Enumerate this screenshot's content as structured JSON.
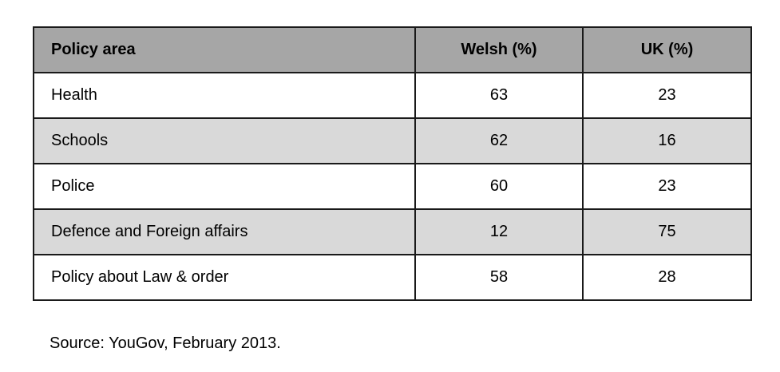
{
  "table": {
    "header": [
      "Policy area",
      "Welsh (%)",
      "UK (%)"
    ],
    "rows": [
      [
        "Health",
        63,
        23
      ],
      [
        "Schools",
        62,
        16
      ],
      [
        "Police",
        60,
        23
      ],
      [
        "Defence and Foreign affairs",
        12,
        75
      ],
      [
        "Policy about Law & order",
        58,
        28
      ]
    ]
  },
  "source": "Source: YouGov, February 2013."
}
